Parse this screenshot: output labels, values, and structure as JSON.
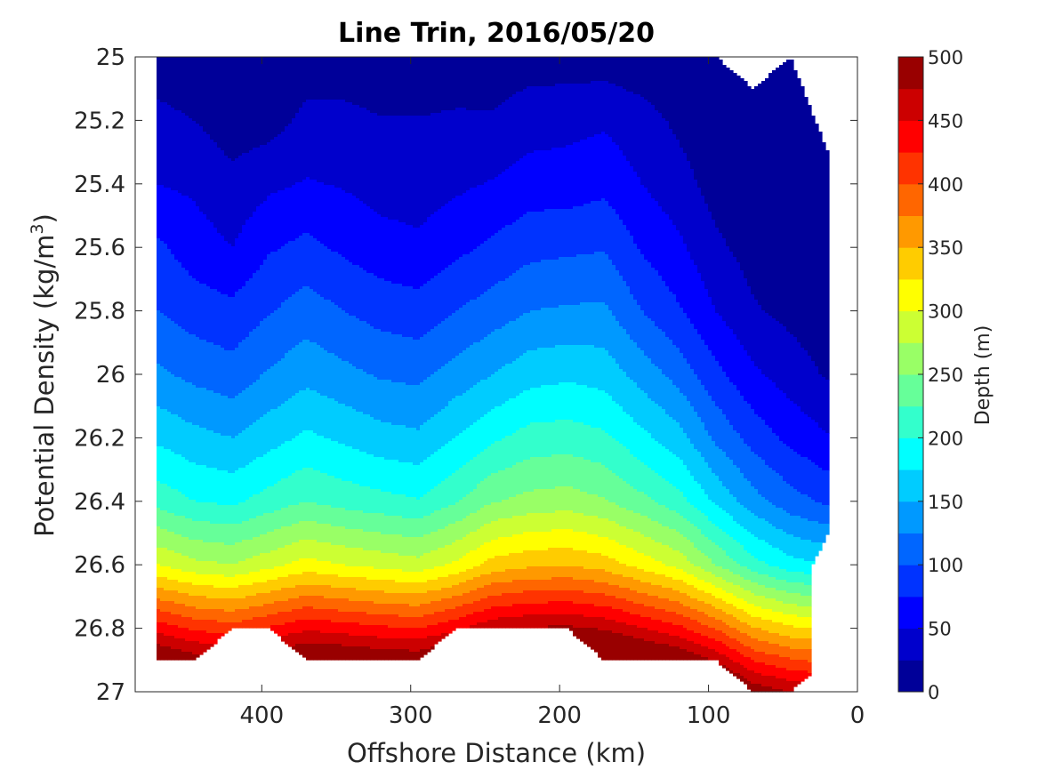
{
  "chart_data": {
    "type": "heatmap",
    "subtype": "filled-contour",
    "title": "Line Trin, 2016/05/20",
    "xlabel": "Offshore Distance (km)",
    "ylabel_main": "Potential Density (kg/m",
    "ylabel_sup": "3",
    "ylabel_end": ")",
    "xlim": [
      0,
      485
    ],
    "x_reversed": true,
    "ylim": [
      25,
      27
    ],
    "y_reversed": true,
    "xticks": [
      400,
      300,
      200,
      100,
      0
    ],
    "xtick_labels": [
      "400",
      "300",
      "200",
      "100",
      "0"
    ],
    "yticks": [
      25,
      25.2,
      25.4,
      25.6,
      25.8,
      26,
      26.2,
      26.4,
      26.6,
      26.8,
      27
    ],
    "ytick_labels": [
      "25",
      "25.2",
      "25.4",
      "25.6",
      "25.8",
      "26",
      "26.2",
      "26.4",
      "26.6",
      "26.8",
      "27"
    ],
    "colorbar": {
      "label": "Depth (m)",
      "range": [
        0,
        500
      ],
      "levels": 20,
      "ticks": [
        0,
        50,
        100,
        150,
        200,
        250,
        300,
        350,
        400,
        450,
        500
      ],
      "tick_labels": [
        "0",
        "50",
        "100",
        "150",
        "200",
        "250",
        "300",
        "350",
        "400",
        "450",
        "500"
      ],
      "colormap": "jet"
    },
    "grid": false,
    "x_stations": [
      470,
      445,
      420,
      395,
      370,
      345,
      320,
      295,
      270,
      245,
      220,
      195,
      170,
      145,
      120,
      95,
      70,
      45,
      20
    ],
    "isopycnal_depth_m": [
      {
        "sigma": 25.0,
        "depth": [
          15,
          12,
          8,
          5,
          10,
          14,
          12,
          8,
          12,
          10,
          14,
          12,
          12,
          8,
          2,
          2,
          2,
          2,
          2
        ]
      },
      {
        "sigma": 25.2,
        "depth": [
          30,
          25,
          12,
          14,
          32,
          30,
          26,
          26,
          28,
          28,
          38,
          42,
          46,
          35,
          20,
          5,
          3,
          2,
          2
        ]
      },
      {
        "sigma": 25.4,
        "depth": [
          50,
          45,
          32,
          45,
          52,
          48,
          40,
          38,
          45,
          52,
          62,
          62,
          68,
          50,
          35,
          15,
          5,
          3,
          2
        ]
      },
      {
        "sigma": 25.6,
        "depth": [
          80,
          62,
          50,
          72,
          82,
          70,
          60,
          55,
          68,
          80,
          92,
          95,
          98,
          72,
          55,
          30,
          15,
          8,
          3
        ]
      },
      {
        "sigma": 25.8,
        "depth": [
          100,
          88,
          82,
          98,
          112,
          100,
          90,
          85,
          100,
          112,
          125,
          128,
          130,
          100,
          78,
          50,
          28,
          18,
          8
        ]
      },
      {
        "sigma": 26.0,
        "depth": [
          130,
          118,
          110,
          128,
          142,
          132,
          122,
          118,
          135,
          150,
          165,
          170,
          165,
          140,
          115,
          82,
          55,
          38,
          22
        ]
      },
      {
        "sigma": 26.2,
        "depth": [
          170,
          158,
          150,
          165,
          180,
          170,
          160,
          155,
          175,
          195,
          210,
          212,
          205,
          182,
          160,
          120,
          90,
          68,
          52
        ]
      },
      {
        "sigma": 26.4,
        "depth": [
          215,
          200,
          195,
          210,
          225,
          215,
          208,
          202,
          222,
          248,
          258,
          262,
          252,
          232,
          210,
          170,
          135,
          110,
          95
        ]
      },
      {
        "sigma": 26.6,
        "depth": [
          300,
          282,
          275,
          292,
          310,
          300,
          292,
          285,
          305,
          335,
          345,
          348,
          338,
          315,
          292,
          250,
          210,
          185,
          175
        ]
      },
      {
        "sigma": 26.8,
        "depth": [
          440,
          420,
          412,
          428,
          445,
          438,
          430,
          425,
          445,
          470,
          478,
          480,
          472,
          452,
          432,
          398,
          352,
          330,
          320
        ]
      }
    ],
    "data_coverage": {
      "left_edge_km": 470,
      "bottom_density_by_station": [
        26.9,
        26.9,
        26.8,
        26.8,
        26.9,
        26.9,
        26.9,
        26.9,
        26.8,
        26.8,
        26.8,
        26.8,
        26.9,
        26.9,
        26.9,
        26.9,
        27.0,
        27.0,
        26.9
      ],
      "top_density_by_station": [
        25.0,
        25.0,
        25.0,
        25.0,
        25.0,
        25.0,
        25.0,
        25.0,
        25.0,
        25.0,
        25.0,
        25.0,
        25.0,
        25.0,
        25.0,
        25.0,
        25.1,
        25.0,
        25.3
      ],
      "right_edge_km_by_density": [
        [
          25.0,
          35
        ],
        [
          25.3,
          20
        ],
        [
          26.5,
          20
        ],
        [
          26.6,
          30
        ],
        [
          26.9,
          30
        ]
      ]
    }
  }
}
